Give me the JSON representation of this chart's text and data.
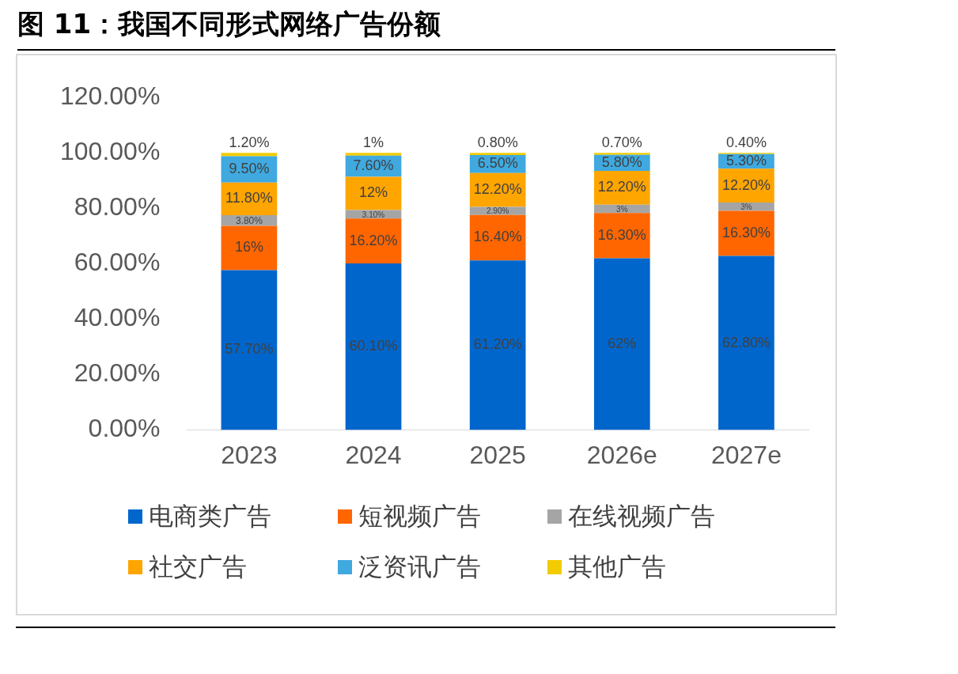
{
  "chart_data": {
    "type": "bar",
    "title": "图 11：我国不同形式网络广告份额",
    "categories": [
      "2023",
      "2024",
      "2025",
      "2026e",
      "2027e"
    ],
    "stacked": true,
    "ylim": [
      0,
      120
    ],
    "yticks": [
      {
        "value": 0,
        "label": "0.00%"
      },
      {
        "value": 20,
        "label": "20.00%"
      },
      {
        "value": 40,
        "label": "40.00%"
      },
      {
        "value": 60,
        "label": "60.00%"
      },
      {
        "value": 80,
        "label": "80.00%"
      },
      {
        "value": 100,
        "label": "100.00%"
      },
      {
        "value": 120,
        "label": "120.00%"
      }
    ],
    "legend": "bottom",
    "series": [
      {
        "name": "电商类广告",
        "color": "#0066cc",
        "values": [
          57.7,
          60.1,
          61.2,
          62,
          62.8
        ],
        "value_labels": [
          "57.70%",
          "60.10%",
          "61.20%",
          "62%",
          "62.80%"
        ]
      },
      {
        "name": "短视频广告",
        "color": "#ff6600",
        "values": [
          16,
          16.2,
          16.4,
          16.3,
          16.3
        ],
        "value_labels": [
          "16%",
          "16.20%",
          "16.40%",
          "16.30%",
          "16.30%"
        ]
      },
      {
        "name": "在线视频广告",
        "color": "#a5a5a5",
        "values": [
          3.8,
          3.1,
          2.9,
          3,
          3
        ],
        "value_labels": [
          "3.80%",
          "3.10%",
          "2.90%",
          "3%",
          "3%"
        ]
      },
      {
        "name": "社交广告",
        "color": "#ffa500",
        "values": [
          11.8,
          12,
          12.2,
          12.2,
          12.2
        ],
        "value_labels": [
          "11.80%",
          "12%",
          "12.20%",
          "12.20%",
          "12.20%"
        ]
      },
      {
        "name": "泛资讯广告",
        "color": "#3fa9e0",
        "values": [
          9.5,
          7.6,
          6.5,
          5.8,
          5.3
        ],
        "value_labels": [
          "9.50%",
          "7.60%",
          "6.50%",
          "5.80%",
          "5.30%"
        ]
      },
      {
        "name": "其他广告",
        "color": "#f2cc00",
        "values": [
          1.2,
          1,
          0.8,
          0.7,
          0.4
        ],
        "value_labels": [
          "1.20%",
          "1%",
          "0.80%",
          "0.70%",
          "0.40%"
        ]
      }
    ]
  }
}
